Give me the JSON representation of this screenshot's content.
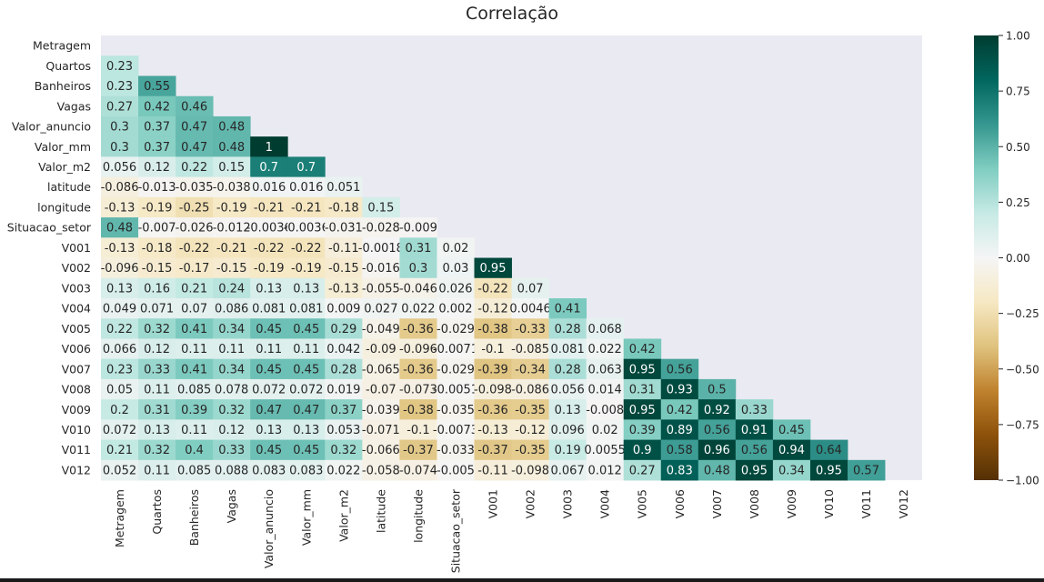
{
  "chart_data": {
    "type": "heatmap",
    "title": "Correlação",
    "xlabel": "",
    "ylabel": "",
    "colormap": "BrBG",
    "vmin": -1,
    "vmax": 1,
    "mask": "upper-triangle including diagonal",
    "background_color": "#eaeaf2",
    "labels": [
      "Metragem",
      "Quartos",
      "Banheiros",
      "Vagas",
      "Valor_anuncio",
      "Valor_mm",
      "Valor_m2",
      "latitude",
      "longitude",
      "Situacao_setor",
      "V001",
      "V002",
      "V003",
      "V004",
      "V005",
      "V006",
      "V007",
      "V008",
      "V009",
      "V010",
      "V011",
      "V012"
    ],
    "annotations": [
      [],
      [
        "0.23"
      ],
      [
        "0.23",
        "0.55"
      ],
      [
        "0.27",
        "0.42",
        "0.46"
      ],
      [
        "0.3",
        "0.37",
        "0.47",
        "0.48"
      ],
      [
        "0.3",
        "0.37",
        "0.47",
        "0.48",
        "1"
      ],
      [
        "0.056",
        "0.12",
        "0.22",
        "0.15",
        "0.7",
        "0.7"
      ],
      [
        "-0.086",
        "-0.013",
        "-0.035",
        "-0.038",
        "0.016",
        "0.016",
        "0.051"
      ],
      [
        "-0.13",
        "-0.19",
        "-0.25",
        "-0.19",
        "-0.21",
        "-0.21",
        "-0.18",
        "0.15"
      ],
      [
        "0.48",
        "-0.007",
        "-0.026",
        "-0.012",
        "-0.0036",
        "-0.0036",
        "-0.031",
        "-0.028",
        "-0.009"
      ],
      [
        "-0.13",
        "-0.18",
        "-0.22",
        "-0.21",
        "-0.22",
        "-0.22",
        "-0.11",
        "-0.0018",
        "0.31",
        "0.02"
      ],
      [
        "-0.096",
        "-0.15",
        "-0.17",
        "-0.15",
        "-0.19",
        "-0.19",
        "-0.15",
        "-0.016",
        "0.3",
        "0.03",
        "0.95"
      ],
      [
        "0.13",
        "0.16",
        "0.21",
        "0.24",
        "0.13",
        "0.13",
        "-0.13",
        "-0.055",
        "-0.046",
        "0.026",
        "-0.22",
        "0.07"
      ],
      [
        "0.049",
        "0.071",
        "0.07",
        "0.086",
        "0.081",
        "0.081",
        "0.009",
        "0.027",
        "0.022",
        "0.002",
        "-0.12",
        "0.0046",
        "0.41"
      ],
      [
        "0.22",
        "0.32",
        "0.41",
        "0.34",
        "0.45",
        "0.45",
        "0.29",
        "-0.049",
        "-0.36",
        "-0.029",
        "-0.38",
        "-0.33",
        "0.28",
        "0.068"
      ],
      [
        "0.066",
        "0.12",
        "0.11",
        "0.11",
        "0.11",
        "0.11",
        "0.042",
        "-0.09",
        "-0.096",
        "-0.0071",
        "-0.1",
        "-0.085",
        "0.081",
        "0.022",
        "0.42"
      ],
      [
        "0.23",
        "0.33",
        "0.41",
        "0.34",
        "0.45",
        "0.45",
        "0.28",
        "-0.065",
        "-0.36",
        "-0.029",
        "-0.39",
        "-0.34",
        "0.28",
        "0.063",
        "0.95",
        "0.56"
      ],
      [
        "0.05",
        "0.11",
        "0.085",
        "0.078",
        "0.072",
        "0.072",
        "0.019",
        "-0.07",
        "-0.073",
        "-0.0051",
        "-0.098",
        "-0.086",
        "0.056",
        "0.014",
        "0.31",
        "0.93",
        "0.5"
      ],
      [
        "0.2",
        "0.31",
        "0.39",
        "0.32",
        "0.47",
        "0.47",
        "0.37",
        "-0.039",
        "-0.38",
        "-0.035",
        "-0.36",
        "-0.35",
        "0.13",
        "-0.008",
        "0.95",
        "0.42",
        "0.92",
        "0.33"
      ],
      [
        "0.072",
        "0.13",
        "0.11",
        "0.12",
        "0.13",
        "0.13",
        "0.053",
        "-0.071",
        "-0.1",
        "-0.0073",
        "-0.13",
        "-0.12",
        "0.096",
        "0.02",
        "0.39",
        "0.89",
        "0.56",
        "0.91",
        "0.45"
      ],
      [
        "0.21",
        "0.32",
        "0.4",
        "0.33",
        "0.45",
        "0.45",
        "0.32",
        "-0.066",
        "-0.37",
        "-0.033",
        "-0.37",
        "-0.35",
        "0.19",
        "0.0055",
        "0.9",
        "0.58",
        "0.96",
        "0.56",
        "0.94",
        "0.64"
      ],
      [
        "0.052",
        "0.11",
        "0.085",
        "0.088",
        "0.083",
        "0.083",
        "0.022",
        "-0.058",
        "-0.074",
        "-0.005",
        "-0.11",
        "-0.098",
        "0.067",
        "0.012",
        "0.27",
        "0.83",
        "0.48",
        "0.95",
        "0.34",
        "0.95",
        "0.57"
      ]
    ],
    "colorbar": {
      "ticks": [
        1.0,
        0.75,
        0.5,
        0.25,
        0.0,
        -0.25,
        -0.5,
        -0.75,
        -1.0
      ],
      "tick_labels": [
        "1.00",
        "0.75",
        "0.50",
        "0.25",
        "0.00",
        "−0.25",
        "−0.50",
        "−0.75",
        "−1.00"
      ]
    }
  }
}
